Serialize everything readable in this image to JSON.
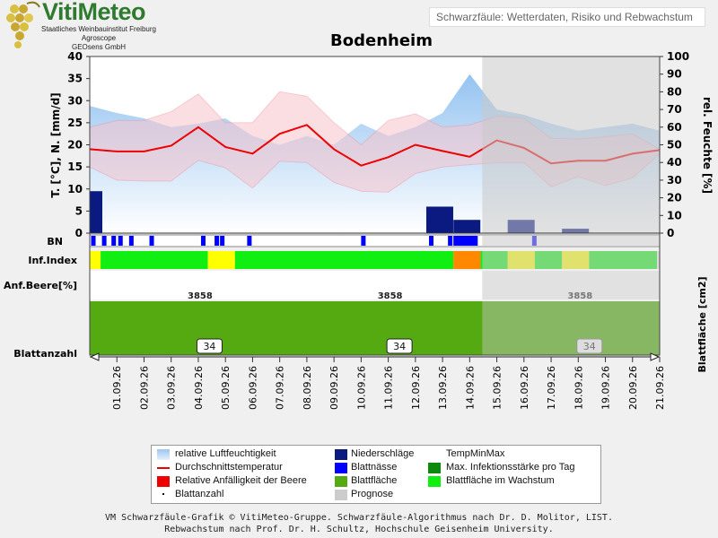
{
  "header": {
    "brand": "VitiMeteo",
    "institute": "Staatliches Weinbauinstitut Freiburg",
    "partner1": "Agroscope",
    "partner2": "GEOsens GmbH",
    "subtitle": "Schwarzfäule: Wetterdaten, Risiko und Rebwachstum"
  },
  "chart_data": {
    "type": "line",
    "title": "Bodenheim",
    "ylabel_left": "T. [°C], N. [mm/d]",
    "ylabel_right": "rel. Feuchte [%]",
    "ylim_left": [
      0,
      40
    ],
    "ylim_right": [
      0,
      100
    ],
    "left_ticks": [
      "0",
      "5",
      "10",
      "15",
      "20",
      "25",
      "30",
      "35",
      "40"
    ],
    "right_ticks": [
      "0",
      "10",
      "20",
      "30",
      "40",
      "50",
      "60",
      "70",
      "80",
      "90",
      "100"
    ],
    "dates": [
      "01.09.26",
      "02.09.26",
      "03.09.26",
      "04.09.26",
      "05.09.26",
      "06.09.26",
      "07.09.26",
      "08.09.26",
      "09.09.26",
      "10.09.26",
      "11.09.26",
      "12.09.26",
      "13.09.26",
      "14.09.26",
      "15.09.26",
      "16.09.26",
      "17.09.26",
      "18.09.26",
      "19.09.26",
      "20.09.26",
      "21.09.26"
    ],
    "forecast_start_index": 14,
    "series": [
      {
        "name": "relative Luftfeuchtigkeit",
        "axis": "right",
        "x": [
          0,
          1,
          2,
          3,
          4,
          5,
          6,
          7,
          8,
          9,
          10,
          11,
          12,
          13,
          14,
          15,
          16,
          17,
          18,
          19,
          20,
          21
        ],
        "values": [
          72,
          68,
          65,
          60,
          62,
          65,
          55,
          50,
          55,
          50,
          62,
          55,
          60,
          68,
          90,
          70,
          67,
          62,
          58,
          60,
          62,
          58
        ]
      },
      {
        "name": "Durchschnittstemperatur",
        "axis": "left",
        "x": [
          0,
          1,
          2,
          3,
          4,
          5,
          6,
          7,
          8,
          9,
          10,
          11,
          12,
          13,
          14,
          15,
          16,
          17,
          18,
          19,
          20,
          21
        ],
        "values": [
          19,
          18.5,
          18.5,
          19.8,
          24,
          19.5,
          18,
          22.5,
          24.5,
          19,
          15.3,
          17.2,
          20,
          18.6,
          17.3,
          21,
          19.3,
          15.8,
          16.4,
          16.4,
          18,
          18.8
        ]
      },
      {
        "name": "TempMinMax max",
        "axis": "left",
        "x": [
          0,
          1,
          2,
          3,
          4,
          5,
          6,
          7,
          8,
          9,
          10,
          11,
          12,
          13,
          14,
          15,
          16,
          17,
          18,
          19,
          20,
          21
        ],
        "values": [
          24,
          25.5,
          25.5,
          27.5,
          31.5,
          25,
          25,
          32,
          31,
          25,
          20,
          25.5,
          27,
          24,
          24.5,
          26.5,
          26,
          21.5,
          21.3,
          21.8,
          22.5,
          19
        ]
      },
      {
        "name": "TempMinMax min",
        "axis": "left",
        "x": [
          0,
          1,
          2,
          3,
          4,
          5,
          6,
          7,
          8,
          9,
          10,
          11,
          12,
          13,
          14,
          15,
          16,
          17,
          18,
          19,
          20,
          21
        ],
        "values": [
          15,
          12,
          11.8,
          11.8,
          16.5,
          14.8,
          10.2,
          16.3,
          16,
          11.5,
          9.5,
          9.3,
          13.5,
          15,
          15.5,
          16,
          16,
          10.5,
          12.8,
          10.8,
          12.5,
          18
        ]
      },
      {
        "name": "Niederschläge",
        "axis": "left",
        "x": [
          0,
          12.5,
          13.5,
          15.5,
          17.5
        ],
        "values": [
          9.5,
          6,
          3,
          3,
          1
        ]
      }
    ],
    "bn_label": "BN",
    "inf_index_label": "Inf.Index",
    "inf_index": [
      {
        "from": 0,
        "to": 0.4,
        "level": "yellow"
      },
      {
        "from": 0.4,
        "to": 4.35,
        "level": "green"
      },
      {
        "from": 4.35,
        "to": 5.35,
        "level": "yellow"
      },
      {
        "from": 5.35,
        "to": 13.4,
        "level": "green"
      },
      {
        "from": 13.4,
        "to": 14.4,
        "level": "orange"
      },
      {
        "from": 14.4,
        "to": 15.4,
        "level": "green"
      },
      {
        "from": 15.4,
        "to": 16.4,
        "level": "yellow"
      },
      {
        "from": 16.4,
        "to": 17.4,
        "level": "green"
      },
      {
        "from": 17.4,
        "to": 18.4,
        "level": "yellow"
      },
      {
        "from": 18.4,
        "to": 20.9,
        "level": "green"
      }
    ],
    "bn_events": [
      0.05,
      0.45,
      0.8,
      1.05,
      1.45,
      2.2,
      4.1,
      4.6,
      4.8,
      5.8,
      10,
      12.5,
      13.2,
      13.4,
      13.65,
      13.9,
      16.3
    ],
    "anf_label": "Anf.Beere[%]",
    "blattflaeche_values": [
      "3858",
      "3858",
      "3858"
    ],
    "blattflaeche_label": "Blattfläche [cm2]",
    "blattanzahl_label": "Blattanzahl",
    "blattanzahl_values": [
      "34",
      "34",
      "34"
    ]
  },
  "legend": [
    {
      "label": "relative Luftfeuchtigkeit",
      "swatch": "gradient-blue"
    },
    {
      "label": "Niederschläge",
      "swatch": "#0a1a80"
    },
    {
      "label": "TempMinMax",
      "swatch": "none"
    },
    {
      "label": "Durchschnittstemperatur",
      "swatch": "line-red"
    },
    {
      "label": "Blattnässe",
      "swatch": "#0000ff"
    },
    {
      "label": "Max. Infektionsstärke pro Tag",
      "swatch": "#0b8a0b"
    },
    {
      "label": "Relative Anfälligkeit der Beere",
      "swatch": "#ee0000"
    },
    {
      "label": "Blattfläche",
      "swatch": "#55aa11"
    },
    {
      "label": "Blattfläche im Wachstum",
      "swatch": "#11ee11"
    },
    {
      "label": "Blattanzahl",
      "swatch": "dot"
    },
    {
      "label": "Prognose",
      "swatch": "#cccccc"
    }
  ],
  "footer": {
    "line1": "VM Schwarzfäule-Grafik © VitiMeteo-Gruppe. Schwarzfäule-Algorithmus nach Dr. D. Molitor, LIST.",
    "line2": "Rebwachstum nach Prof. Dr. H. Schultz, Hochschule Geisenheim University."
  }
}
